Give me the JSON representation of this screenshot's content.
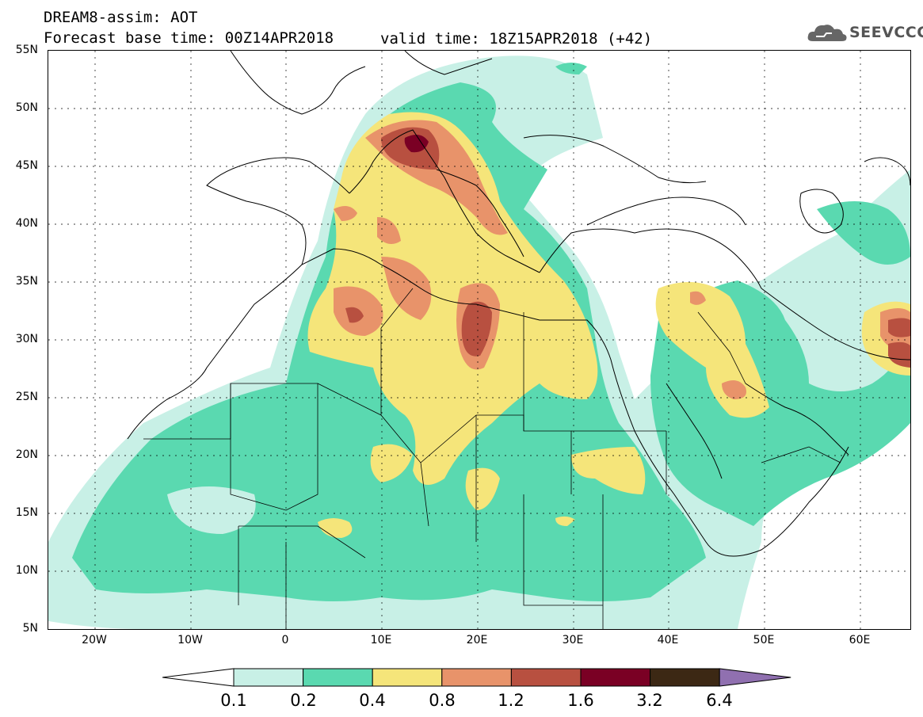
{
  "header": {
    "line1": "DREAM8-assim: AOT",
    "line2": "Forecast base time: 00Z14APR2018",
    "valid_time": "valid time: 18Z15APR2018 (+42)",
    "logo_text": "SEEVCCC"
  },
  "axes": {
    "lat_labels": [
      "55N",
      "50N",
      "45N",
      "40N",
      "35N",
      "30N",
      "25N",
      "20N",
      "15N",
      "10N",
      "5N"
    ],
    "lon_labels": [
      "20W",
      "10W",
      "0",
      "10E",
      "20E",
      "30E",
      "40E",
      "50E",
      "60E"
    ]
  },
  "legend": {
    "labels": [
      "0.1",
      "0.2",
      "0.4",
      "0.8",
      "1.2",
      "1.6",
      "3.2",
      "6.4"
    ],
    "colors": [
      "#ffffff",
      "#c8f0e6",
      "#5ad9b0",
      "#f5e57a",
      "#e8936a",
      "#b85040",
      "#7a0024",
      "#3c2814",
      "#9070b0"
    ]
  },
  "colors": {
    "ocean": "#ffffff",
    "aot_01": "#c8f0e6",
    "aot_02": "#5ad9b0",
    "aot_04": "#f5e57a",
    "aot_08": "#e8936a",
    "aot_12": "#b85040",
    "aot_16": "#7a0024"
  }
}
